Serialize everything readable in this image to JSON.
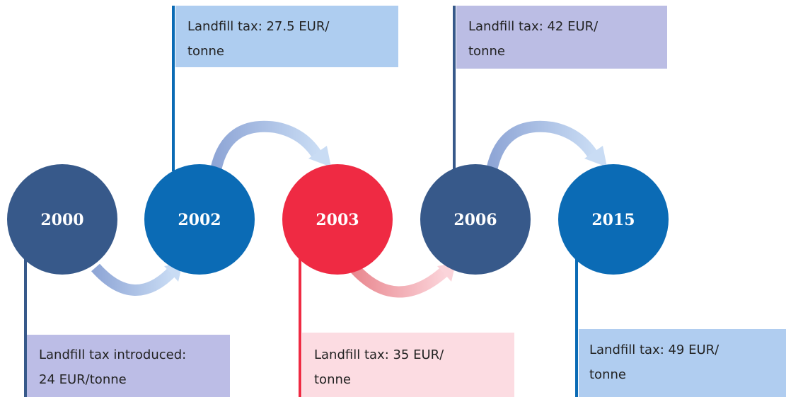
{
  "nodes": [
    {
      "year": "2000",
      "label": [
        "Landfill tax introduced:",
        "24 EUR/tonne"
      ]
    },
    {
      "year": "2002",
      "label": [
        "Landfill tax: 27.5 EUR/",
        "tonne"
      ]
    },
    {
      "year": "2003",
      "label": [
        "Landfill tax: 35 EUR/",
        "tonne"
      ]
    },
    {
      "year": "2006",
      "label": [
        "Landfill tax: 42 EUR/",
        "tonne"
      ]
    },
    {
      "year": "2015",
      "label": [
        "Landfill tax: 49 EUR/",
        "tonne"
      ]
    }
  ]
}
